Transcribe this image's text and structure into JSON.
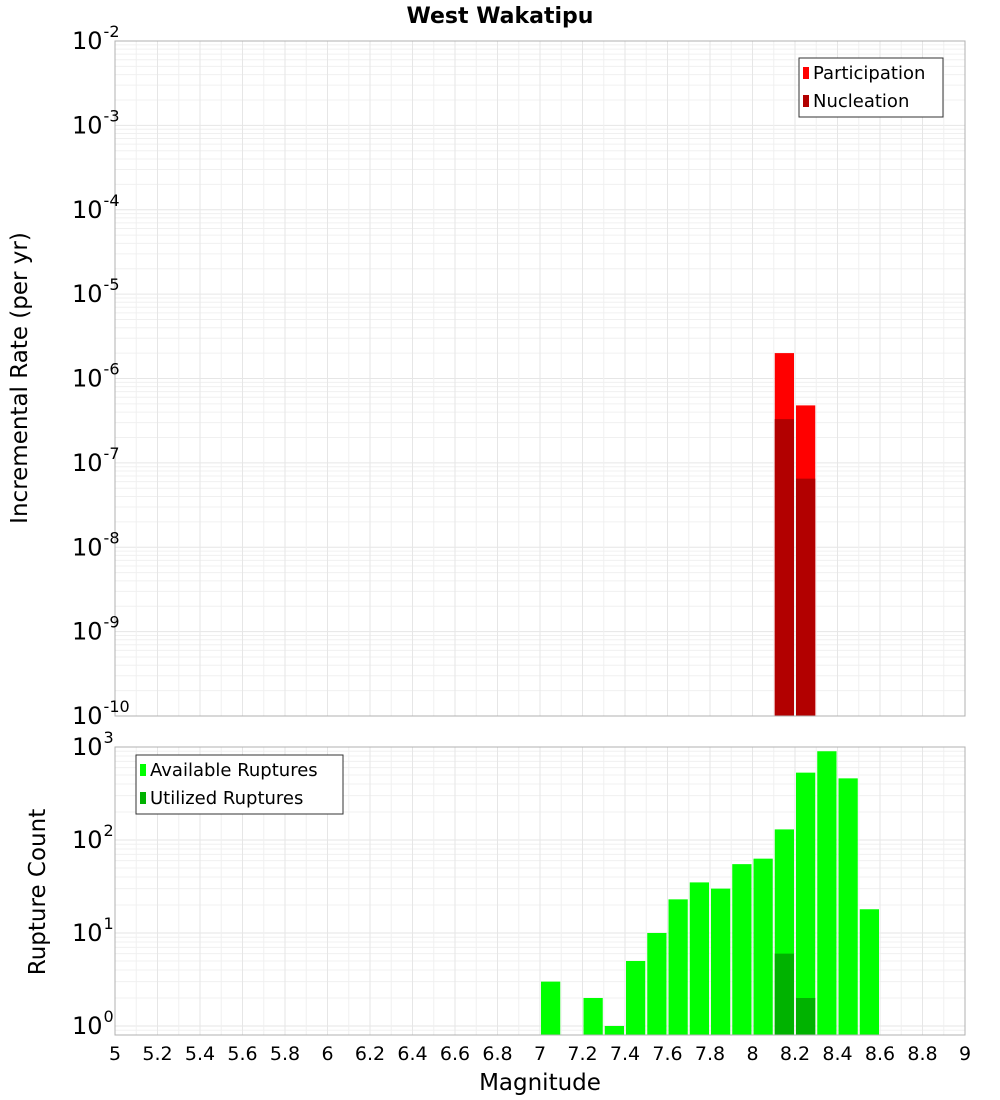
{
  "chart_data": [
    {
      "type": "bar",
      "title": "West Wakatipu",
      "xlabel": "Magnitude",
      "ylabel": "Incremental Rate (per yr)",
      "xlim": [
        5,
        9
      ],
      "ylim_exponent": [
        -10,
        -2
      ],
      "yscale": "log",
      "ytick_labels": [
        {
          "exp": -2,
          "base": "10",
          "sup": "-2"
        },
        {
          "exp": -3,
          "base": "10",
          "sup": "-3"
        },
        {
          "exp": -4,
          "base": "10",
          "sup": "-4"
        },
        {
          "exp": -5,
          "base": "10",
          "sup": "-5"
        },
        {
          "exp": -6,
          "base": "10",
          "sup": "-6"
        },
        {
          "exp": -7,
          "base": "10",
          "sup": "-7"
        },
        {
          "exp": -8,
          "base": "10",
          "sup": "-8"
        },
        {
          "exp": -9,
          "base": "10",
          "sup": "-9"
        },
        {
          "exp": -10,
          "base": "10",
          "sup": "-10"
        }
      ],
      "bar_width": 0.1,
      "series": [
        {
          "name": "Participation",
          "color": "#ff0000",
          "points": [
            {
              "x": 8.15,
              "y": 2e-06
            },
            {
              "x": 8.25,
              "y": 4.8e-07
            }
          ]
        },
        {
          "name": "Nucleation",
          "color": "#b20000",
          "points": [
            {
              "x": 8.15,
              "y": 3.3e-07
            },
            {
              "x": 8.25,
              "y": 6.5e-08
            }
          ]
        }
      ],
      "legend": {
        "position": "top-right",
        "entries": [
          "Participation",
          "Nucleation"
        ]
      }
    },
    {
      "type": "bar",
      "xlabel": "Magnitude",
      "ylabel": "Rupture Count",
      "xlim": [
        5,
        9
      ],
      "ylim": [
        0.8,
        1000
      ],
      "yscale": "log",
      "ytick_labels": [
        {
          "exp": 3,
          "base": "10",
          "sup": "3"
        },
        {
          "exp": 2,
          "base": "10",
          "sup": "2"
        },
        {
          "exp": 1,
          "base": "10",
          "sup": "1"
        },
        {
          "exp": 0,
          "base": "10",
          "sup": "0"
        }
      ],
      "bar_width": 0.1,
      "series": [
        {
          "name": "Available Ruptures",
          "color": "#00ff00",
          "points": [
            {
              "x": 7.05,
              "y": 3
            },
            {
              "x": 7.25,
              "y": 2
            },
            {
              "x": 7.35,
              "y": 1
            },
            {
              "x": 7.45,
              "y": 5
            },
            {
              "x": 7.55,
              "y": 10
            },
            {
              "x": 7.65,
              "y": 23
            },
            {
              "x": 7.75,
              "y": 35
            },
            {
              "x": 7.85,
              "y": 30
            },
            {
              "x": 7.95,
              "y": 55
            },
            {
              "x": 8.05,
              "y": 63
            },
            {
              "x": 8.15,
              "y": 130
            },
            {
              "x": 8.25,
              "y": 530
            },
            {
              "x": 8.35,
              "y": 900
            },
            {
              "x": 8.45,
              "y": 460
            },
            {
              "x": 8.55,
              "y": 18
            }
          ]
        },
        {
          "name": "Utilized Ruptures",
          "color": "#00b200",
          "points": [
            {
              "x": 8.15,
              "y": 6
            },
            {
              "x": 8.25,
              "y": 2
            }
          ]
        }
      ],
      "legend": {
        "position": "top-left",
        "entries": [
          "Available Ruptures",
          "Utilized Ruptures"
        ]
      }
    }
  ],
  "xtick_labels": [
    "5",
    "5.2",
    "5.4",
    "5.6",
    "5.8",
    "6",
    "6.2",
    "6.4",
    "6.6",
    "6.8",
    "7",
    "7.2",
    "7.4",
    "7.6",
    "7.8",
    "8",
    "8.2",
    "8.4",
    "8.6",
    "8.8",
    "9"
  ]
}
